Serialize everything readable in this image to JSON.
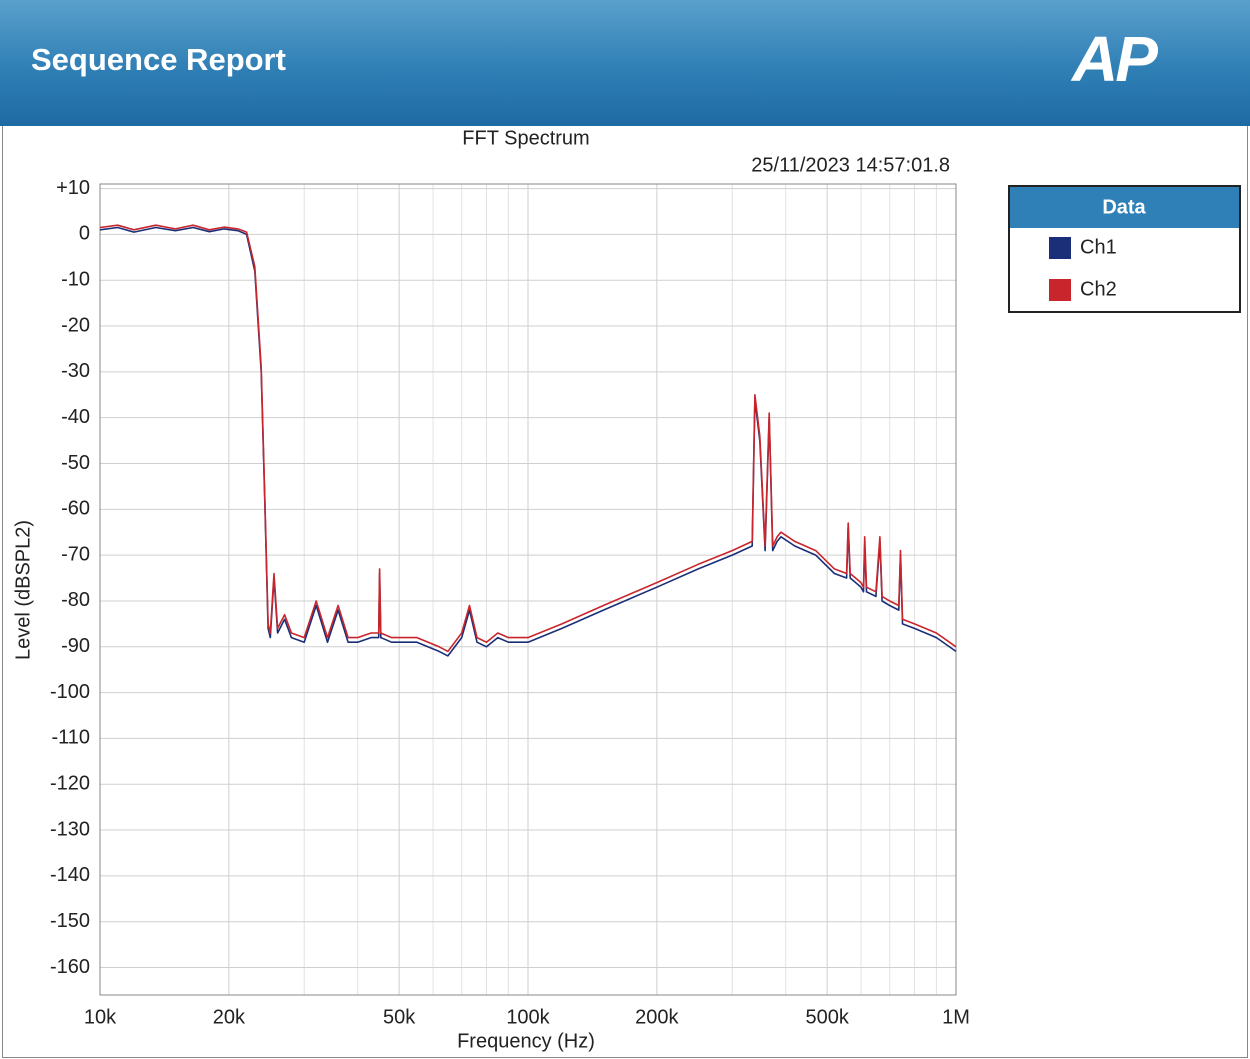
{
  "header": {
    "title": "Sequence Report",
    "logo": "AP"
  },
  "chart_data": {
    "type": "line",
    "title": "FFT Spectrum",
    "subtitle": "25/11/2023 14:57:01.8",
    "watermark": "AP",
    "xlabel": "Frequency (Hz)",
    "ylabel": "Level (dBSPL2)",
    "legend_title": "Data",
    "legend": "outside-right",
    "xscale": "log",
    "grid": true,
    "xlim": [
      10000,
      1000000
    ],
    "ylim": [
      -166,
      11
    ],
    "xticks": [
      {
        "value": 10000,
        "label": "10k"
      },
      {
        "value": 20000,
        "label": "20k"
      },
      {
        "value": 50000,
        "label": "50k"
      },
      {
        "value": 100000,
        "label": "100k"
      },
      {
        "value": 200000,
        "label": "200k"
      },
      {
        "value": 500000,
        "label": "500k"
      },
      {
        "value": 1000000,
        "label": "1M"
      }
    ],
    "x_minor_ticks": [
      30000,
      40000,
      60000,
      70000,
      80000,
      90000,
      300000,
      400000,
      600000,
      700000,
      800000,
      900000
    ],
    "yticks": [
      {
        "value": 10,
        "label": "+10"
      },
      0,
      -10,
      -20,
      -30,
      -40,
      -50,
      -60,
      -70,
      -80,
      -90,
      -100,
      -110,
      -120,
      -130,
      -140,
      -150,
      -160
    ],
    "x": [
      10000,
      11000,
      12000,
      13500,
      15000,
      16500,
      18000,
      19500,
      21000,
      22000,
      23000,
      23800,
      24300,
      24700,
      25000,
      25500,
      26000,
      27000,
      28000,
      30000,
      32000,
      34000,
      36000,
      38000,
      40000,
      43000,
      44800,
      45000,
      45300,
      48000,
      55000,
      62000,
      65000,
      70000,
      73000,
      76000,
      80000,
      85000,
      90000,
      100000,
      120000,
      150000,
      200000,
      250000,
      300000,
      334000,
      339000,
      348000,
      358000,
      366000,
      373000,
      382000,
      390000,
      420000,
      470000,
      520000,
      555000,
      560000,
      566000,
      600000,
      608000,
      612000,
      618000,
      650000,
      664000,
      672000,
      700000,
      735000,
      742000,
      750000,
      800000,
      900000,
      1000000
    ],
    "series": [
      {
        "name": "Ch1",
        "color": "#1a2f78",
        "values": [
          1,
          1.5,
          0.5,
          1.5,
          0.8,
          1.5,
          0.6,
          1.2,
          0.8,
          0,
          -8,
          -30,
          -60,
          -86,
          -88,
          -75,
          -87,
          -84,
          -88,
          -89,
          -81,
          -89,
          -82,
          -89,
          -89,
          -88,
          -88,
          -74,
          -88,
          -89,
          -89,
          -91,
          -92,
          -88,
          -82,
          -89,
          -90,
          -88,
          -89,
          -89,
          -86,
          -82,
          -77,
          -73,
          -70,
          -68,
          -36,
          -45,
          -69,
          -40,
          -69,
          -67,
          -66,
          -68,
          -70,
          -74,
          -75,
          -64,
          -75,
          -77,
          -78,
          -68,
          -78,
          -79,
          -67,
          -80,
          -81,
          -82,
          -70,
          -85,
          -86,
          -88,
          -91
        ]
      },
      {
        "name": "Ch2",
        "color": "#c8262c",
        "values": [
          1.5,
          2,
          1,
          2,
          1.2,
          2,
          1,
          1.6,
          1.2,
          0.5,
          -7,
          -29,
          -59,
          -85,
          -87,
          -74,
          -86,
          -83,
          -87,
          -88,
          -80,
          -88,
          -81,
          -88,
          -88,
          -87,
          -87,
          -73,
          -87,
          -88,
          -88,
          -90,
          -91,
          -87,
          -81,
          -88,
          -89,
          -87,
          -88,
          -88,
          -85,
          -81,
          -76,
          -72,
          -69,
          -67,
          -35,
          -44,
          -68,
          -39,
          -68,
          -66,
          -65,
          -67,
          -69,
          -73,
          -74,
          -63,
          -74,
          -76,
          -77,
          -66,
          -77,
          -78,
          -66,
          -79,
          -80,
          -81,
          -69,
          -84,
          -85,
          -87,
          -90
        ]
      }
    ]
  }
}
